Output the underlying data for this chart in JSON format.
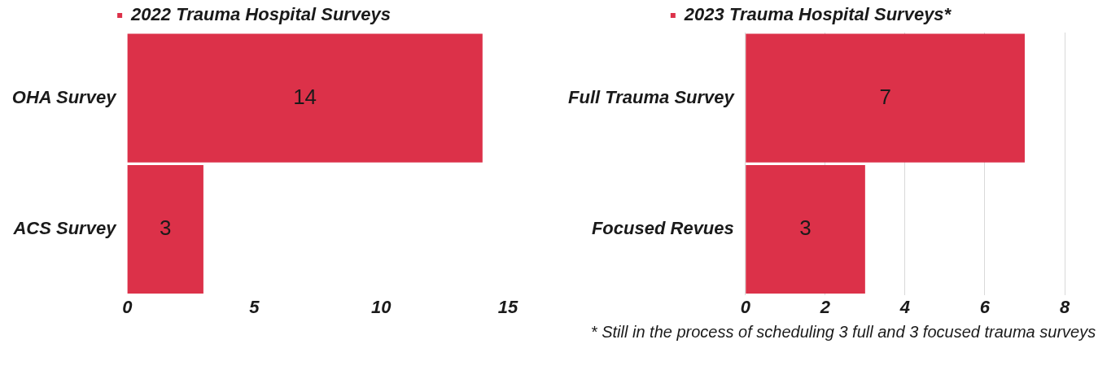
{
  "chart_data": [
    {
      "type": "bar",
      "orientation": "horizontal",
      "categories": [
        "OHA Survey",
        "ACS Survey"
      ],
      "series": [
        {
          "name": "2022 Trauma Hospital Surveys",
          "color": "#dc3149",
          "values": [
            14,
            3
          ]
        }
      ],
      "xlim": [
        0,
        15
      ],
      "xticks": [
        0,
        5,
        10,
        15
      ],
      "grid": false,
      "legend": "top",
      "data_labels": true
    },
    {
      "type": "bar",
      "orientation": "horizontal",
      "categories": [
        "Full Trauma Survey",
        "Focused Revues"
      ],
      "series": [
        {
          "name": "2023 Trauma Hospital Surveys*",
          "color": "#dc3149",
          "values": [
            7,
            3
          ]
        }
      ],
      "xlim": [
        0,
        8
      ],
      "xticks": [
        0,
        2,
        4,
        6,
        8
      ],
      "grid": "x",
      "legend": "top",
      "data_labels": true,
      "annotations": [
        "* Still in the process of scheduling 3 full and 3 focused trauma surveys"
      ]
    }
  ]
}
